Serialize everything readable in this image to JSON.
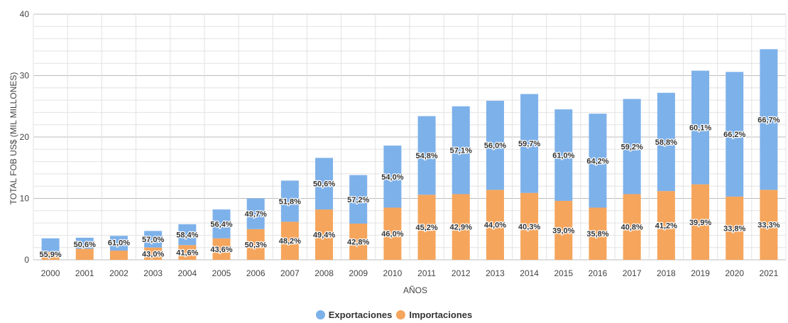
{
  "chart_data": {
    "type": "bar",
    "stacked": true,
    "title": "",
    "xlabel": "AÑOS",
    "ylabel": "TOTAL FOB US$ (MIL MILLONES)",
    "ylim": [
      0,
      40
    ],
    "yticks": [
      "0",
      "10",
      "20",
      "30",
      "40"
    ],
    "grid": true,
    "legend_position": "bottom",
    "categories": [
      "2000",
      "2001",
      "2002",
      "2003",
      "2004",
      "2005",
      "2006",
      "2007",
      "2008",
      "2009",
      "2010",
      "2011",
      "2012",
      "2013",
      "2014",
      "2015",
      "2016",
      "2017",
      "2018",
      "2019",
      "2020",
      "2021"
    ],
    "series": [
      {
        "name": "Importaciones",
        "color": "#f5a55c",
        "values": [
          1.3,
          1.8,
          1.5,
          2.0,
          2.4,
          3.5,
          5.0,
          6.2,
          8.2,
          5.9,
          8.5,
          10.6,
          10.7,
          11.4,
          10.9,
          9.6,
          8.5,
          10.7,
          11.2,
          12.3,
          10.3,
          11.4
        ],
        "labels": [
          "",
          "",
          "",
          "43,0%",
          "41,6%",
          "43,6%",
          "50,3%",
          "48,2%",
          "49,4%",
          "42,8%",
          "46,0%",
          "45,2%",
          "42,9%",
          "44,0%",
          "40,3%",
          "39,0%",
          "35,8%",
          "40,8%",
          "41,2%",
          "39,9%",
          "33,8%",
          "33,3%"
        ]
      },
      {
        "name": "Exportaciones",
        "color": "#7db1ea",
        "values": [
          2.2,
          1.8,
          2.4,
          2.7,
          3.4,
          4.7,
          5.0,
          6.7,
          8.4,
          7.9,
          10.1,
          12.8,
          14.3,
          14.5,
          16.1,
          14.9,
          15.3,
          15.5,
          16.0,
          18.5,
          20.3,
          22.9
        ],
        "labels": [
          "",
          "",
          "",
          "57,0%",
          "58,4%",
          "56,4%",
          "49,7%",
          "51,8%",
          "50,6%",
          "57,2%",
          "54,0%",
          "54,8%",
          "57,1%",
          "56,0%",
          "59,7%",
          "61,0%",
          "64,2%",
          "59,2%",
          "58,8%",
          "60,1%",
          "66,2%",
          "66,7%"
        ]
      }
    ],
    "overflow_labels": [
      "55,9%",
      "50,6%",
      "61,0%",
      "",
      "",
      "",
      "",
      "",
      "",
      "",
      "",
      "",
      "",
      "",
      "",
      "",
      "",
      "",
      "",
      "",
      "",
      ""
    ],
    "legend": [
      "Exportaciones",
      "Importaciones"
    ]
  }
}
